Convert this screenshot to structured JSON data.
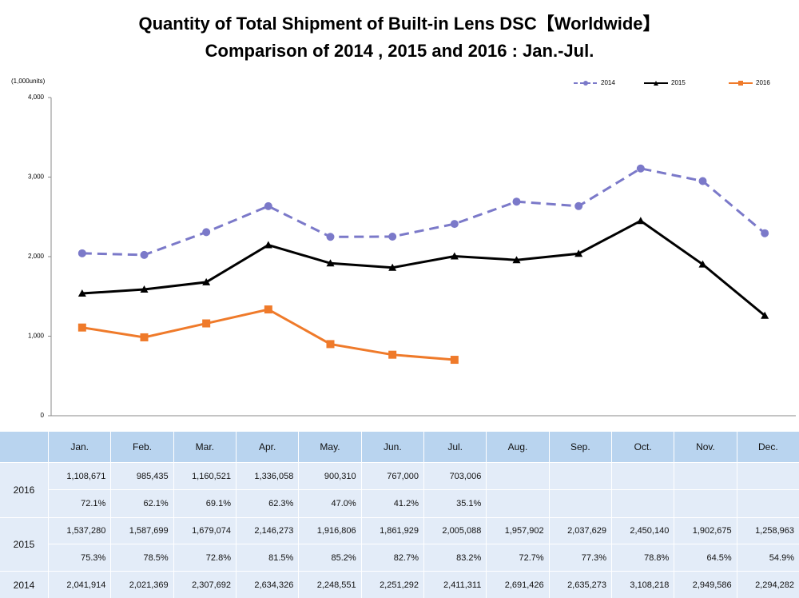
{
  "chart_data": {
    "type": "line",
    "title": "Quantity of Total Shipment of Built-in Lens DSC【Worldwide】",
    "subtitle": "Comparison of 2014 , 2015 and 2016 : Jan.-Jul.",
    "ylabel": "(1,000units)",
    "categories": [
      "Jan.",
      "Feb.",
      "Mar.",
      "Apr.",
      "May.",
      "Jun.",
      "Jul.",
      "Aug.",
      "Sep.",
      "Oct.",
      "Nov.",
      "Dec."
    ],
    "ylim": [
      0,
      4000
    ],
    "yticks": [
      0,
      {
        "value": 1000,
        "label": "1,000"
      },
      {
        "value": 2000,
        "label": "2,000"
      },
      {
        "value": 3000,
        "label": "3,000"
      },
      {
        "value": 4000,
        "label": "4,000"
      }
    ],
    "legend": "top-right",
    "series": [
      {
        "name": "2014",
        "color": "#7b79c9",
        "linestyle": "dashed",
        "marker": "circle",
        "values": [
          2041.914,
          2021.369,
          2307.692,
          2634.326,
          2248.551,
          2251.292,
          2411.311,
          2691.426,
          2635.273,
          3108.218,
          2949.586,
          2294.282
        ]
      },
      {
        "name": "2015",
        "color": "#000000",
        "linestyle": "solid",
        "marker": "triangle",
        "values": [
          1537.28,
          1587.699,
          1679.074,
          2146.273,
          1916.806,
          1861.929,
          2005.088,
          1957.902,
          2037.629,
          2450.14,
          1902.675,
          1258.963
        ]
      },
      {
        "name": "2016",
        "color": "#ef7a2a",
        "linestyle": "solid",
        "marker": "square",
        "values": [
          1108.671,
          985.435,
          1160.521,
          1336.058,
          900.31,
          767.0,
          703.006,
          null,
          null,
          null,
          null,
          null
        ]
      }
    ]
  },
  "table": {
    "rows": [
      {
        "year": "2016",
        "lines": [
          [
            "1,108,671",
            "985,435",
            "1,160,521",
            "1,336,058",
            "900,310",
            "767,000",
            "703,006"
          ],
          [
            "72.1%",
            "62.1%",
            "69.1%",
            "62.3%",
            "47.0%",
            "41.2%",
            "35.1%"
          ]
        ]
      },
      {
        "year": "2015",
        "lines": [
          [
            "1,537,280",
            "1,587,699",
            "1,679,074",
            "2,146,273",
            "1,916,806",
            "1,861,929",
            "2,005,088",
            "1,957,902",
            "2,037,629",
            "2,450,140",
            "1,902,675",
            "1,258,963"
          ],
          [
            "75.3%",
            "78.5%",
            "72.8%",
            "81.5%",
            "85.2%",
            "82.7%",
            "83.2%",
            "72.7%",
            "77.3%",
            "78.8%",
            "64.5%",
            "54.9%"
          ]
        ]
      },
      {
        "year": "2014",
        "lines": [
          [
            "2,041,914",
            "2,021,369",
            "2,307,692",
            "2,634,326",
            "2,248,551",
            "2,251,292",
            "2,411,311",
            "2,691,426",
            "2,635,273",
            "3,108,218",
            "2,949,586",
            "2,294,282"
          ]
        ]
      }
    ]
  }
}
